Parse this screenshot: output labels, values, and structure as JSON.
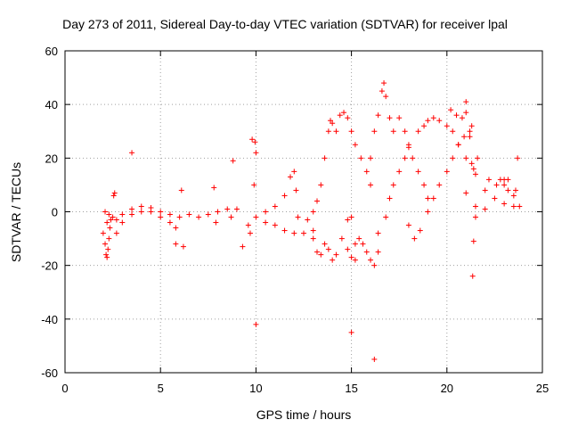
{
  "chart_data": {
    "type": "scatter",
    "title": "Day 273 of 2011, Sidereal Day-to-day VTEC variation (SDTVAR) for receiver lpal",
    "xlabel": "GPS time / hours",
    "ylabel": "SDTVAR / TECUs",
    "xlim": [
      0,
      25
    ],
    "ylim": [
      -60,
      60
    ],
    "xticks": [
      0,
      5,
      10,
      15,
      20,
      25
    ],
    "yticks": [
      -60,
      -40,
      -20,
      0,
      20,
      40,
      60
    ],
    "grid": true,
    "marker": "+",
    "color": "#ff0000",
    "series": [
      {
        "name": "lpal SDTVAR",
        "points": [
          [
            2.0,
            -8
          ],
          [
            2.1,
            -12
          ],
          [
            2.15,
            -16
          ],
          [
            2.2,
            -17
          ],
          [
            2.25,
            -14
          ],
          [
            2.3,
            -10
          ],
          [
            2.35,
            -6
          ],
          [
            2.4,
            -3
          ],
          [
            2.5,
            -2
          ],
          [
            2.55,
            6
          ],
          [
            2.6,
            7
          ],
          [
            2.2,
            -4
          ],
          [
            2.3,
            -1
          ],
          [
            2.1,
            0
          ],
          [
            2.7,
            -3
          ],
          [
            3.0,
            -1
          ],
          [
            3.5,
            1
          ],
          [
            4.0,
            2
          ],
          [
            4.5,
            1.5
          ],
          [
            5.0,
            0
          ],
          [
            5.5,
            -1
          ],
          [
            6.0,
            -2
          ],
          [
            6.5,
            -1
          ],
          [
            7.0,
            -2
          ],
          [
            7.5,
            -1
          ],
          [
            8.0,
            0
          ],
          [
            8.5,
            1
          ],
          [
            9.0,
            1
          ],
          [
            2.7,
            -8
          ],
          [
            3.0,
            -4
          ],
          [
            3.5,
            -1
          ],
          [
            4.0,
            0
          ],
          [
            4.5,
            0
          ],
          [
            5.0,
            -2
          ],
          [
            5.5,
            -4
          ],
          [
            5.8,
            -6
          ],
          [
            3.5,
            22
          ],
          [
            5.8,
            -12
          ],
          [
            6.2,
            -13
          ],
          [
            6.1,
            8
          ],
          [
            7.8,
            9
          ],
          [
            7.9,
            -4
          ],
          [
            8.8,
            19
          ],
          [
            8.7,
            -2
          ],
          [
            9.3,
            -13
          ],
          [
            9.6,
            -5
          ],
          [
            9.7,
            -8
          ],
          [
            9.9,
            10
          ],
          [
            10.0,
            22
          ],
          [
            9.95,
            26
          ],
          [
            9.8,
            27
          ],
          [
            10.0,
            -42
          ],
          [
            10.0,
            -2
          ],
          [
            10.5,
            -4
          ],
          [
            11.0,
            -5
          ],
          [
            11.5,
            -7
          ],
          [
            12.0,
            -8
          ],
          [
            12.5,
            -8
          ],
          [
            13.0,
            -7
          ],
          [
            10.5,
            0
          ],
          [
            11.0,
            2
          ],
          [
            11.5,
            6
          ],
          [
            11.8,
            13
          ],
          [
            12.0,
            15
          ],
          [
            12.1,
            8
          ],
          [
            12.2,
            -2
          ],
          [
            13.0,
            -10
          ],
          [
            13.2,
            -15
          ],
          [
            13.4,
            -16
          ],
          [
            13.6,
            -12
          ],
          [
            13.8,
            -14
          ],
          [
            14.0,
            -18
          ],
          [
            14.2,
            -16
          ],
          [
            12.7,
            -3
          ],
          [
            13.0,
            0
          ],
          [
            13.2,
            4
          ],
          [
            13.4,
            10
          ],
          [
            13.6,
            20
          ],
          [
            13.8,
            30
          ],
          [
            13.9,
            34
          ],
          [
            14.0,
            33
          ],
          [
            14.2,
            30
          ],
          [
            14.4,
            36
          ],
          [
            14.6,
            37
          ],
          [
            14.8,
            35
          ],
          [
            15.0,
            30
          ],
          [
            15.2,
            25
          ],
          [
            15.5,
            20
          ],
          [
            15.8,
            15
          ],
          [
            16.0,
            10
          ],
          [
            14.5,
            -10
          ],
          [
            14.8,
            -14
          ],
          [
            15.0,
            -17
          ],
          [
            15.2,
            -12
          ],
          [
            15.4,
            -10
          ],
          [
            15.6,
            -12
          ],
          [
            15.8,
            -15
          ],
          [
            16.0,
            -18
          ],
          [
            16.2,
            -20
          ],
          [
            16.4,
            -15
          ],
          [
            15.0,
            -45
          ],
          [
            16.2,
            -55
          ],
          [
            15.2,
            -18
          ],
          [
            14.8,
            -3
          ],
          [
            15.0,
            -2
          ],
          [
            16.0,
            20
          ],
          [
            16.2,
            30
          ],
          [
            16.4,
            36
          ],
          [
            16.6,
            45
          ],
          [
            16.7,
            48
          ],
          [
            16.8,
            43
          ],
          [
            17.0,
            35
          ],
          [
            17.2,
            30
          ],
          [
            17.5,
            35
          ],
          [
            17.8,
            30
          ],
          [
            18.0,
            25
          ],
          [
            16.4,
            -8
          ],
          [
            16.8,
            -2
          ],
          [
            17.0,
            5
          ],
          [
            17.2,
            10
          ],
          [
            17.5,
            15
          ],
          [
            17.8,
            20
          ],
          [
            18.0,
            24
          ],
          [
            18.2,
            20
          ],
          [
            18.5,
            15
          ],
          [
            18.8,
            10
          ],
          [
            19.0,
            5
          ],
          [
            18.5,
            30
          ],
          [
            18.8,
            32
          ],
          [
            19.0,
            34
          ],
          [
            19.3,
            35
          ],
          [
            19.6,
            34
          ],
          [
            20.0,
            32
          ],
          [
            20.3,
            30
          ],
          [
            20.6,
            25
          ],
          [
            21.0,
            20
          ],
          [
            21.3,
            18
          ],
          [
            18.0,
            -5
          ],
          [
            18.3,
            -10
          ],
          [
            18.6,
            -7
          ],
          [
            19.0,
            0
          ],
          [
            19.3,
            5
          ],
          [
            19.6,
            10
          ],
          [
            20.0,
            15
          ],
          [
            20.3,
            20
          ],
          [
            20.6,
            25
          ],
          [
            20.9,
            28
          ],
          [
            21.2,
            30
          ],
          [
            20.2,
            38
          ],
          [
            20.5,
            36
          ],
          [
            21.0,
            37
          ],
          [
            21.0,
            41
          ],
          [
            21.3,
            32
          ],
          [
            21.4,
            16
          ],
          [
            21.5,
            14
          ],
          [
            22.0,
            8
          ],
          [
            22.5,
            5
          ],
          [
            23.0,
            3
          ],
          [
            23.5,
            2
          ],
          [
            23.8,
            2
          ],
          [
            21.0,
            7
          ],
          [
            21.5,
            2
          ],
          [
            22.0,
            1
          ],
          [
            22.8,
            12
          ],
          [
            23.0,
            10
          ],
          [
            23.2,
            8
          ],
          [
            21.5,
            -2
          ],
          [
            21.4,
            -11
          ],
          [
            21.35,
            -24
          ],
          [
            23.7,
            20
          ],
          [
            23.6,
            8
          ],
          [
            23.5,
            6
          ],
          [
            20.8,
            35
          ],
          [
            21.2,
            28
          ],
          [
            21.6,
            20
          ],
          [
            22.2,
            12
          ],
          [
            22.6,
            10
          ],
          [
            23.0,
            12
          ],
          [
            23.2,
            12
          ]
        ]
      }
    ]
  }
}
